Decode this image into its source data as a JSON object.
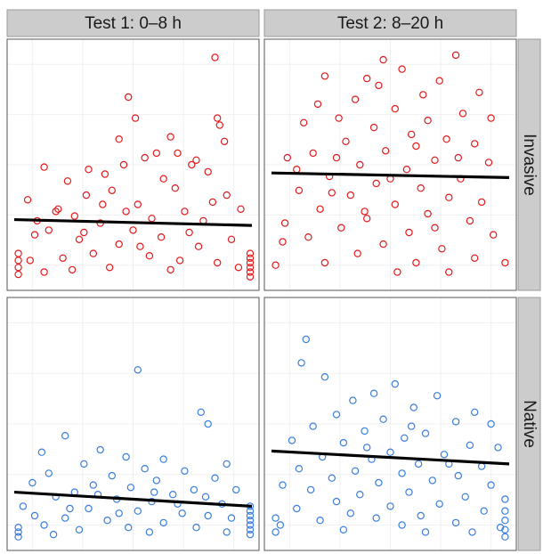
{
  "chart_data": {
    "type": "scatter",
    "layout": "facet-grid",
    "columns": [
      "Test 1: 0–8 h",
      "Test 2: 8–20 h"
    ],
    "rows": [
      "Invasive",
      "Native"
    ],
    "axes": {
      "x_range": [
        0,
        1
      ],
      "y_range": [
        0,
        1
      ],
      "grid": true,
      "tick_labels": "none"
    },
    "colors": {
      "Invasive": "#e31a1c",
      "Native": "#3b7ddd",
      "fit_line": "#000000",
      "strip": "#cccccc"
    },
    "panels": [
      {
        "col": "Test 1: 0–8 h",
        "row": "Invasive",
        "fit_line": {
          "x": [
            0.0,
            1.0
          ],
          "y": [
            0.265,
            0.24
          ]
        },
        "points": [
          [
            0.85,
            0.96
          ],
          [
            0.48,
            0.79
          ],
          [
            0.86,
            0.7
          ],
          [
            0.87,
            0.67
          ],
          [
            0.51,
            0.7
          ],
          [
            0.44,
            0.61
          ],
          [
            0.89,
            0.6
          ],
          [
            0.66,
            0.62
          ],
          [
            0.12,
            0.49
          ],
          [
            0.31,
            0.48
          ],
          [
            0.69,
            0.55
          ],
          [
            0.75,
            0.5
          ],
          [
            0.82,
            0.47
          ],
          [
            0.77,
            0.52
          ],
          [
            0.6,
            0.55
          ],
          [
            0.55,
            0.53
          ],
          [
            0.46,
            0.5
          ],
          [
            0.38,
            0.46
          ],
          [
            0.22,
            0.43
          ],
          [
            0.63,
            0.44
          ],
          [
            0.05,
            0.35
          ],
          [
            0.18,
            0.31
          ],
          [
            0.3,
            0.37
          ],
          [
            0.41,
            0.39
          ],
          [
            0.68,
            0.4
          ],
          [
            0.9,
            0.37
          ],
          [
            0.96,
            0.31
          ],
          [
            0.25,
            0.28
          ],
          [
            0.52,
            0.33
          ],
          [
            0.72,
            0.3
          ],
          [
            0.8,
            0.26
          ],
          [
            0.58,
            0.27
          ],
          [
            0.36,
            0.25
          ],
          [
            0.14,
            0.22
          ],
          [
            0.08,
            0.2
          ],
          [
            0.27,
            0.18
          ],
          [
            0.44,
            0.16
          ],
          [
            0.62,
            0.19
          ],
          [
            0.78,
            0.15
          ],
          [
            0.92,
            0.18
          ],
          [
            0.5,
            0.22
          ],
          [
            0.33,
            0.12
          ],
          [
            0.2,
            0.1
          ],
          [
            0.06,
            0.09
          ],
          [
            0.57,
            0.11
          ],
          [
            0.7,
            0.09
          ],
          [
            0.86,
            0.08
          ],
          [
            0.4,
            0.06
          ],
          [
            0.95,
            0.06
          ],
          [
            0.24,
            0.05
          ],
          [
            0.12,
            0.04
          ],
          [
            0.66,
            0.05
          ],
          [
            0.01,
            0.12
          ],
          [
            0.01,
            0.09
          ],
          [
            0.01,
            0.06
          ],
          [
            0.01,
            0.03
          ],
          [
            1.0,
            0.12
          ],
          [
            1.0,
            0.1
          ],
          [
            1.0,
            0.08
          ],
          [
            1.0,
            0.06
          ],
          [
            1.0,
            0.04
          ],
          [
            1.0,
            0.02
          ],
          [
            0.17,
            0.3
          ],
          [
            0.47,
            0.3
          ],
          [
            0.84,
            0.34
          ],
          [
            0.29,
            0.21
          ],
          [
            0.74,
            0.21
          ],
          [
            0.53,
            0.15
          ],
          [
            0.09,
            0.26
          ],
          [
            0.37,
            0.33
          ]
        ]
      },
      {
        "col": "Test 2: 8–20 h",
        "row": "Invasive",
        "fit_line": {
          "x": [
            0.0,
            1.0
          ],
          "y": [
            0.465,
            0.445
          ]
        },
        "points": [
          [
            0.78,
            0.97
          ],
          [
            0.47,
            0.95
          ],
          [
            0.55,
            0.91
          ],
          [
            0.4,
            0.87
          ],
          [
            0.22,
            0.88
          ],
          [
            0.71,
            0.86
          ],
          [
            0.88,
            0.81
          ],
          [
            0.45,
            0.84
          ],
          [
            0.64,
            0.8
          ],
          [
            0.35,
            0.78
          ],
          [
            0.19,
            0.76
          ],
          [
            0.52,
            0.74
          ],
          [
            0.81,
            0.72
          ],
          [
            0.93,
            0.7
          ],
          [
            0.66,
            0.69
          ],
          [
            0.28,
            0.7
          ],
          [
            0.13,
            0.68
          ],
          [
            0.43,
            0.66
          ],
          [
            0.59,
            0.63
          ],
          [
            0.74,
            0.61
          ],
          [
            0.86,
            0.59
          ],
          [
            0.31,
            0.6
          ],
          [
            0.48,
            0.56
          ],
          [
            0.17,
            0.55
          ],
          [
            0.06,
            0.53
          ],
          [
            0.69,
            0.52
          ],
          [
            0.92,
            0.51
          ],
          [
            0.37,
            0.5
          ],
          [
            0.57,
            0.48
          ],
          [
            0.24,
            0.45
          ],
          [
            0.8,
            0.44
          ],
          [
            0.44,
            0.42
          ],
          [
            0.63,
            0.4
          ],
          [
            0.11,
            0.39
          ],
          [
            0.33,
            0.37
          ],
          [
            0.75,
            0.36
          ],
          [
            0.89,
            0.34
          ],
          [
            0.52,
            0.33
          ],
          [
            0.2,
            0.31
          ],
          [
            0.66,
            0.29
          ],
          [
            0.4,
            0.27
          ],
          [
            0.84,
            0.26
          ],
          [
            0.05,
            0.25
          ],
          [
            0.29,
            0.23
          ],
          [
            0.58,
            0.21
          ],
          [
            0.94,
            0.2
          ],
          [
            0.15,
            0.19
          ],
          [
            0.47,
            0.16
          ],
          [
            0.72,
            0.14
          ],
          [
            0.36,
            0.12
          ],
          [
            0.86,
            0.1
          ],
          [
            0.22,
            0.08
          ],
          [
            0.61,
            0.08
          ],
          [
            0.01,
            0.07
          ],
          [
            0.99,
            0.08
          ],
          [
            0.04,
            0.17
          ],
          [
            0.75,
            0.04
          ],
          [
            0.53,
            0.04
          ],
          [
            0.27,
            0.53
          ],
          [
            0.61,
            0.58
          ],
          [
            0.39,
            0.3
          ],
          [
            0.79,
            0.53
          ],
          [
            0.1,
            0.48
          ],
          [
            0.5,
            0.44
          ],
          [
            0.69,
            0.23
          ],
          [
            0.25,
            0.38
          ]
        ]
      },
      {
        "col": "Test 1: 0–8 h",
        "row": "Native",
        "fit_line": {
          "x": [
            0.0,
            1.0
          ],
          "y": [
            0.21,
            0.15
          ]
        },
        "points": [
          [
            0.52,
            0.73
          ],
          [
            0.79,
            0.55
          ],
          [
            0.82,
            0.5
          ],
          [
            0.21,
            0.45
          ],
          [
            0.36,
            0.39
          ],
          [
            0.11,
            0.38
          ],
          [
            0.47,
            0.36
          ],
          [
            0.63,
            0.35
          ],
          [
            0.9,
            0.33
          ],
          [
            0.29,
            0.33
          ],
          [
            0.55,
            0.31
          ],
          [
            0.72,
            0.3
          ],
          [
            0.14,
            0.29
          ],
          [
            0.41,
            0.28
          ],
          [
            0.85,
            0.27
          ],
          [
            0.6,
            0.26
          ],
          [
            0.07,
            0.25
          ],
          [
            0.33,
            0.24
          ],
          [
            0.49,
            0.23
          ],
          [
            0.76,
            0.22
          ],
          [
            0.94,
            0.22
          ],
          [
            0.25,
            0.21
          ],
          [
            0.67,
            0.2
          ],
          [
            0.17,
            0.19
          ],
          [
            0.43,
            0.18
          ],
          [
            0.58,
            0.17
          ],
          [
            0.88,
            0.16
          ],
          [
            0.03,
            0.15
          ],
          [
            0.31,
            0.14
          ],
          [
            0.52,
            0.13
          ],
          [
            0.71,
            0.12
          ],
          [
            0.82,
            0.11
          ],
          [
            0.21,
            0.1
          ],
          [
            0.39,
            0.09
          ],
          [
            0.63,
            0.08
          ],
          [
            0.12,
            0.07
          ],
          [
            0.48,
            0.06
          ],
          [
            0.77,
            0.06
          ],
          [
            0.27,
            0.05
          ],
          [
            0.9,
            0.04
          ],
          [
            0.57,
            0.04
          ],
          [
            0.16,
            0.03
          ],
          [
            0.01,
            0.06
          ],
          [
            0.01,
            0.04
          ],
          [
            0.01,
            0.02
          ],
          [
            1.0,
            0.15
          ],
          [
            1.0,
            0.13
          ],
          [
            1.0,
            0.11
          ],
          [
            1.0,
            0.09
          ],
          [
            1.0,
            0.07
          ],
          [
            1.0,
            0.05
          ],
          [
            1.0,
            0.03
          ],
          [
            0.44,
            0.12
          ],
          [
            0.35,
            0.2
          ],
          [
            0.69,
            0.16
          ],
          [
            0.08,
            0.11
          ],
          [
            0.92,
            0.1
          ],
          [
            0.59,
            0.21
          ],
          [
            0.23,
            0.14
          ],
          [
            0.81,
            0.19
          ]
        ]
      },
      {
        "col": "Test 2: 8–20 h",
        "row": "Native",
        "fit_line": {
          "x": [
            0.0,
            1.0
          ],
          "y": [
            0.385,
            0.33
          ]
        },
        "points": [
          [
            0.14,
            0.86
          ],
          [
            0.12,
            0.76
          ],
          [
            0.22,
            0.7
          ],
          [
            0.52,
            0.67
          ],
          [
            0.43,
            0.63
          ],
          [
            0.7,
            0.62
          ],
          [
            0.34,
            0.6
          ],
          [
            0.6,
            0.57
          ],
          [
            0.86,
            0.55
          ],
          [
            0.27,
            0.54
          ],
          [
            0.47,
            0.52
          ],
          [
            0.78,
            0.51
          ],
          [
            0.93,
            0.5
          ],
          [
            0.17,
            0.49
          ],
          [
            0.39,
            0.47
          ],
          [
            0.65,
            0.46
          ],
          [
            0.56,
            0.44
          ],
          [
            0.08,
            0.43
          ],
          [
            0.3,
            0.42
          ],
          [
            0.84,
            0.41
          ],
          [
            0.96,
            0.4
          ],
          [
            0.5,
            0.38
          ],
          [
            0.73,
            0.37
          ],
          [
            0.21,
            0.36
          ],
          [
            0.42,
            0.35
          ],
          [
            0.62,
            0.33
          ],
          [
            0.89,
            0.32
          ],
          [
            0.11,
            0.31
          ],
          [
            0.35,
            0.3
          ],
          [
            0.55,
            0.29
          ],
          [
            0.79,
            0.28
          ],
          [
            0.25,
            0.27
          ],
          [
            0.68,
            0.26
          ],
          [
            0.45,
            0.25
          ],
          [
            0.04,
            0.24
          ],
          [
            0.93,
            0.24
          ],
          [
            0.16,
            0.22
          ],
          [
            0.58,
            0.21
          ],
          [
            0.37,
            0.2
          ],
          [
            0.82,
            0.19
          ],
          [
            0.27,
            0.17
          ],
          [
            0.71,
            0.16
          ],
          [
            0.5,
            0.15
          ],
          [
            0.1,
            0.14
          ],
          [
            0.9,
            0.13
          ],
          [
            0.33,
            0.12
          ],
          [
            0.63,
            0.11
          ],
          [
            0.44,
            0.1
          ],
          [
            0.2,
            0.09
          ],
          [
            0.78,
            0.08
          ],
          [
            0.55,
            0.07
          ],
          [
            0.03,
            0.07
          ],
          [
            0.97,
            0.06
          ],
          [
            0.85,
            0.04
          ],
          [
            0.65,
            0.04
          ],
          [
            0.01,
            0.1
          ],
          [
            0.01,
            0.04
          ],
          [
            0.99,
            0.18
          ],
          [
            0.99,
            0.13
          ],
          [
            0.99,
            0.09
          ],
          [
            0.99,
            0.05
          ],
          [
            0.99,
            0.02
          ],
          [
            0.4,
            0.4
          ],
          [
            0.75,
            0.33
          ],
          [
            0.3,
            0.05
          ],
          [
            0.59,
            0.49
          ]
        ]
      }
    ]
  }
}
